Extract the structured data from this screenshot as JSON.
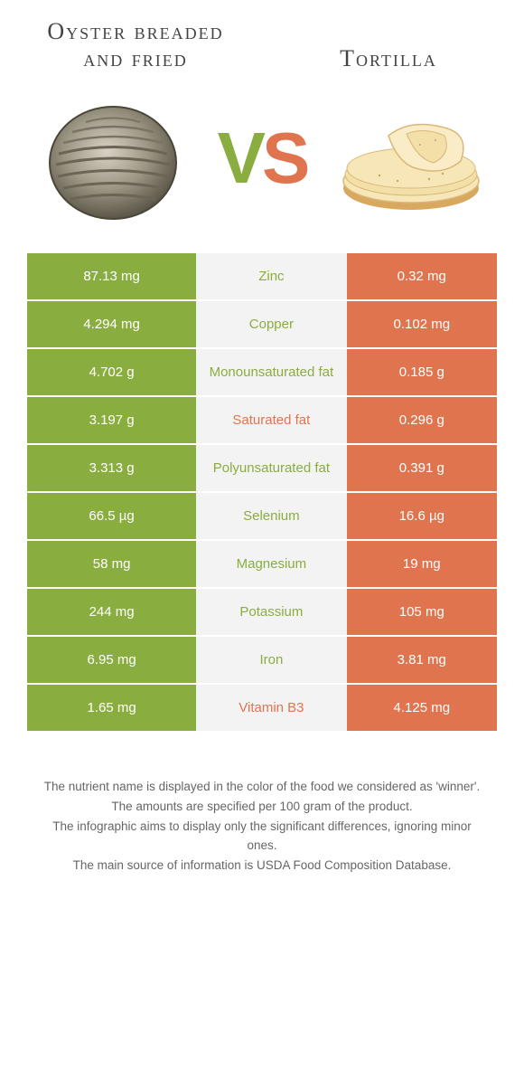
{
  "leftFood": {
    "name": "Oyster breaded and fried",
    "color": "#8aad3f"
  },
  "rightFood": {
    "name": "Tortilla",
    "color": "#e0744f"
  },
  "vs": {
    "v": "V",
    "s": "S"
  },
  "rows": [
    {
      "left": "87.13 mg",
      "label": "Zinc",
      "right": "0.32 mg",
      "winner": "left"
    },
    {
      "left": "4.294 mg",
      "label": "Copper",
      "right": "0.102 mg",
      "winner": "left"
    },
    {
      "left": "4.702 g",
      "label": "Monounsaturated fat",
      "right": "0.185 g",
      "winner": "left"
    },
    {
      "left": "3.197 g",
      "label": "Saturated fat",
      "right": "0.296 g",
      "winner": "right"
    },
    {
      "left": "3.313 g",
      "label": "Polyunsaturated fat",
      "right": "0.391 g",
      "winner": "left"
    },
    {
      "left": "66.5 µg",
      "label": "Selenium",
      "right": "16.6 µg",
      "winner": "left"
    },
    {
      "left": "58 mg",
      "label": "Magnesium",
      "right": "19 mg",
      "winner": "left"
    },
    {
      "left": "244 mg",
      "label": "Potassium",
      "right": "105 mg",
      "winner": "left"
    },
    {
      "left": "6.95 mg",
      "label": "Iron",
      "right": "3.81 mg",
      "winner": "left"
    },
    {
      "left": "1.65 mg",
      "label": "Vitamin B3",
      "right": "4.125 mg",
      "winner": "right"
    }
  ],
  "footer": {
    "l1": "The nutrient name is displayed in the color of the food we considered as 'winner'.",
    "l2": "The amounts are specified per 100 gram of the product.",
    "l3": "The infographic aims to display only the significant differences, ignoring minor ones.",
    "l4": "The main source of information is USDA Food Composition Database."
  },
  "colors": {
    "green": "#8aad3f",
    "orange": "#e0744f",
    "midBg": "#f3f3f3"
  }
}
